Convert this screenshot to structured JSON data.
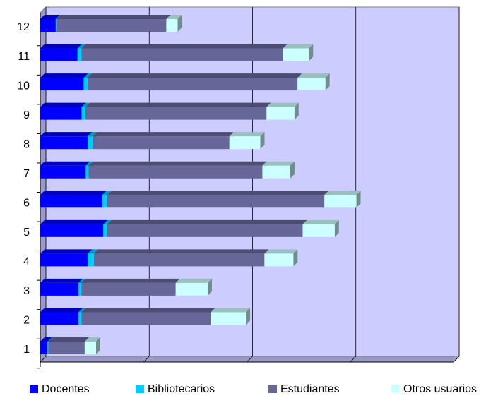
{
  "chart_data": {
    "type": "bar",
    "orientation": "horizontal",
    "stacked": true,
    "categories": [
      "1",
      "2",
      "3",
      "4",
      "5",
      "6",
      "7",
      "8",
      "9",
      "10",
      "11",
      "12"
    ],
    "series": [
      {
        "name": "Docentes",
        "color": "#0000ff",
        "values": [
          7,
          37,
          37,
          46,
          61,
          60,
          44,
          46,
          40,
          42,
          36,
          15
        ]
      },
      {
        "name": "Bibliotecarios",
        "color": "#00ccff",
        "values": [
          1,
          3,
          3,
          6,
          4,
          5,
          3,
          5,
          4,
          4,
          4,
          1
        ]
      },
      {
        "name": "Estudiantes",
        "color": "#666699",
        "values": [
          35,
          125,
          91,
          165,
          189,
          210,
          168,
          132,
          175,
          203,
          195,
          106
        ]
      },
      {
        "name": "Otros usuarios",
        "color": "#ccffff",
        "values": [
          11,
          34,
          31,
          28,
          31,
          31,
          27,
          30,
          27,
          27,
          25,
          11
        ]
      }
    ],
    "xlim": [
      0,
      400
    ],
    "xticks": [
      0,
      100,
      200,
      300,
      400
    ],
    "grid": true,
    "wall_color": "#ccccff",
    "legend": "bottom"
  }
}
